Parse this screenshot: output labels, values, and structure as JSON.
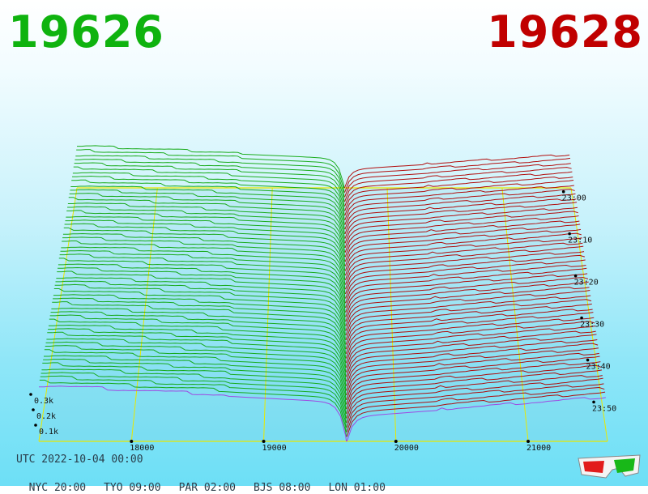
{
  "header": {
    "bid_price": "19626",
    "ask_price": "19628"
  },
  "footer": {
    "utc_label": "UTC 2022-10-04 00:00",
    "cities": [
      {
        "label": "NYC 20:00"
      },
      {
        "label": "TYO 09:00"
      },
      {
        "label": "PAR 02:00"
      },
      {
        "label": "BJS 08:00"
      },
      {
        "label": "LON 01:00"
      }
    ]
  },
  "chart_data": {
    "type": "3d-depth-chart",
    "x_ticks": [
      18000,
      19000,
      20000,
      21000
    ],
    "z_ticks": [
      "0.1k",
      "0.2k",
      "0.3k"
    ],
    "time_ticks": [
      "23:00",
      "23:10",
      "23:20",
      "23:30",
      "23:40",
      "23:50"
    ],
    "bid_color": "#10a810",
    "ask_color": "#b00000",
    "grid_color": "#e8e800",
    "current_color": "#a040e0",
    "bid_price": 19626,
    "ask_price": 19628
  }
}
